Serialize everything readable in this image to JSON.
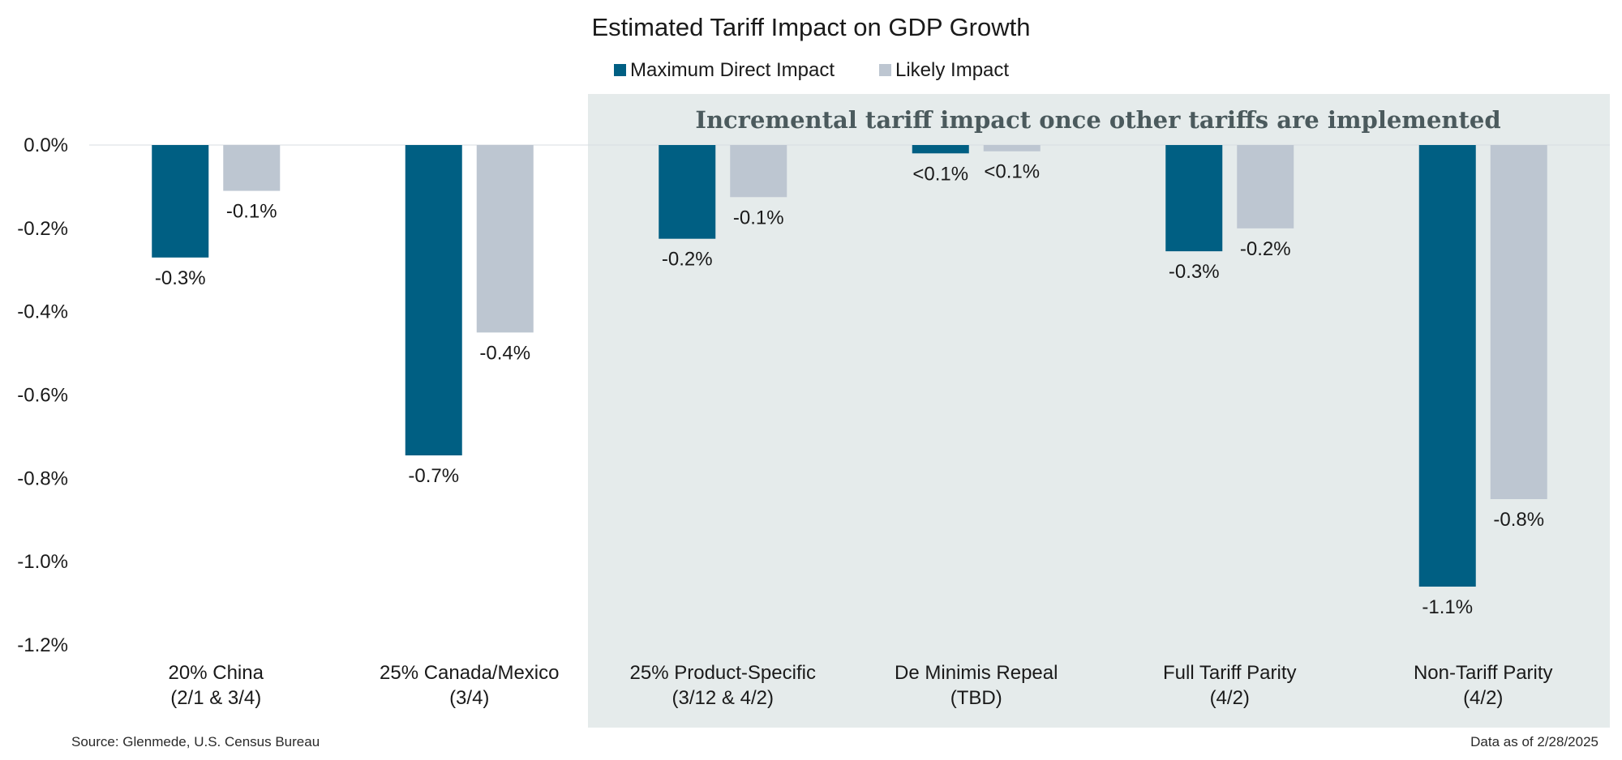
{
  "chart_data": {
    "type": "bar",
    "title": "Estimated Tariff Impact on GDP Growth",
    "annotation": "Incremental tariff impact once other tariffs are implemented",
    "legend_position": "top-center",
    "grid": false,
    "ylim": [
      -1.2,
      0.0
    ],
    "yticks": [
      {
        "value": 0.0,
        "label": "0.0%"
      },
      {
        "value": -0.2,
        "label": "-0.2%"
      },
      {
        "value": -0.4,
        "label": "-0.4%"
      },
      {
        "value": -0.6,
        "label": "-0.6%"
      },
      {
        "value": -0.8,
        "label": "-0.8%"
      },
      {
        "value": -1.0,
        "label": "-1.0%"
      },
      {
        "value": -1.2,
        "label": "-1.2%"
      }
    ],
    "categories": [
      {
        "line1": "20% China",
        "line2": "(2/1 & 3/4)"
      },
      {
        "line1": "25% Canada/Mexico",
        "line2": "(3/4)"
      },
      {
        "line1": "25% Product-Specific",
        "line2": "(3/12 & 4/2)"
      },
      {
        "line1": "De Minimis Repeal",
        "line2": "(TBD)"
      },
      {
        "line1": "Full Tariff Parity",
        "line2": "(4/2)"
      },
      {
        "line1": "Non-Tariff Parity",
        "line2": "(4/2)"
      }
    ],
    "highlight_from_category": 2,
    "series": [
      {
        "name": "Maximum Direct Impact",
        "color": "#005f83",
        "values": [
          -0.27,
          -0.745,
          -0.225,
          -0.02,
          -0.255,
          -1.06
        ],
        "labels": [
          "-0.3%",
          "-0.7%",
          "-0.2%",
          "<0.1%",
          "-0.3%",
          "-1.1%"
        ]
      },
      {
        "name": "Likely Impact",
        "color": "#bdc6d1",
        "values": [
          -0.11,
          -0.45,
          -0.125,
          -0.015,
          -0.2,
          -0.85
        ],
        "labels": [
          "-0.1%",
          "-0.4%",
          "-0.1%",
          "<0.1%",
          "-0.2%",
          "-0.8%"
        ]
      }
    ],
    "highlight_color": "#e5ebeb",
    "zero_line_color": "#d8dde0"
  },
  "footer": {
    "source": "Source: Glenmede, U.S. Census Bureau",
    "date": "Data as of 2/28/2025"
  }
}
